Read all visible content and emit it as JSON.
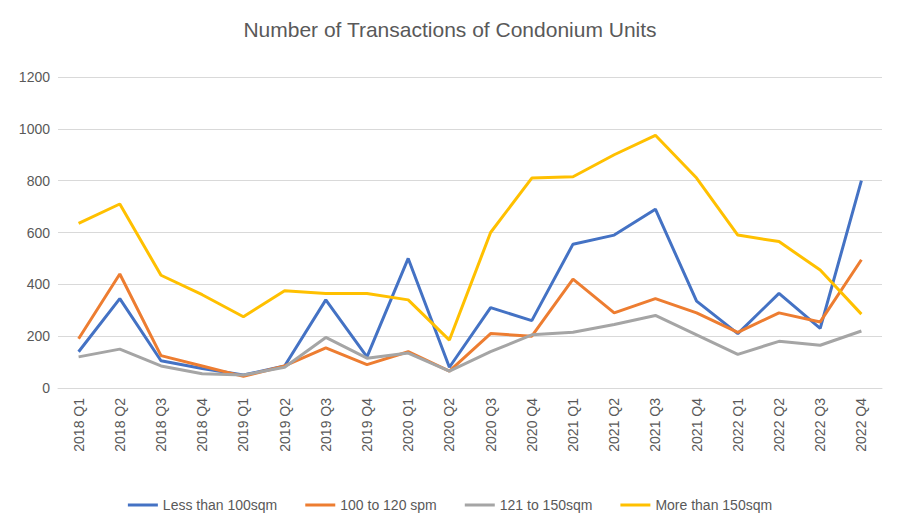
{
  "chart_data": {
    "type": "line",
    "title": "Number of Transactions of Condonium Units",
    "categories": [
      "2018 Q1",
      "2018 Q2",
      "2018 Q3",
      "2018 Q4",
      "2019 Q1",
      "2019 Q2",
      "2019 Q3",
      "2019 Q4",
      "2020 Q1",
      "2020 Q2",
      "2020 Q3",
      "2020 Q4",
      "2021 Q1",
      "2021 Q2",
      "2021 Q3",
      "2021 Q4",
      "2022 Q1",
      "2022 Q2",
      "2022 Q3",
      "2022 Q4"
    ],
    "series": [
      {
        "name": "Less than 100sqm",
        "color": "#4472C4",
        "values": [
          140,
          345,
          105,
          75,
          50,
          85,
          340,
          120,
          500,
          80,
          310,
          260,
          555,
          590,
          690,
          335,
          210,
          365,
          230,
          800
        ]
      },
      {
        "name": "100 to 120 spm",
        "color": "#ED7D31",
        "values": [
          190,
          440,
          125,
          85,
          45,
          85,
          155,
          90,
          140,
          65,
          210,
          200,
          420,
          290,
          345,
          290,
          215,
          290,
          255,
          495
        ]
      },
      {
        "name": "121 to 150sqm",
        "color": "#A5A5A5",
        "values": [
          120,
          150,
          85,
          55,
          50,
          80,
          195,
          115,
          135,
          65,
          140,
          205,
          215,
          245,
          280,
          205,
          130,
          180,
          165,
          220
        ]
      },
      {
        "name": "More than 150sqm",
        "color": "#FFC000",
        "values": [
          635,
          710,
          435,
          360,
          275,
          375,
          365,
          365,
          340,
          185,
          600,
          810,
          815,
          900,
          975,
          810,
          590,
          565,
          455,
          285
        ]
      }
    ],
    "ylim": [
      0,
      1200
    ],
    "yticks": [
      0,
      200,
      400,
      600,
      800,
      1000,
      1200
    ],
    "grid": true,
    "legend": "bottom"
  }
}
